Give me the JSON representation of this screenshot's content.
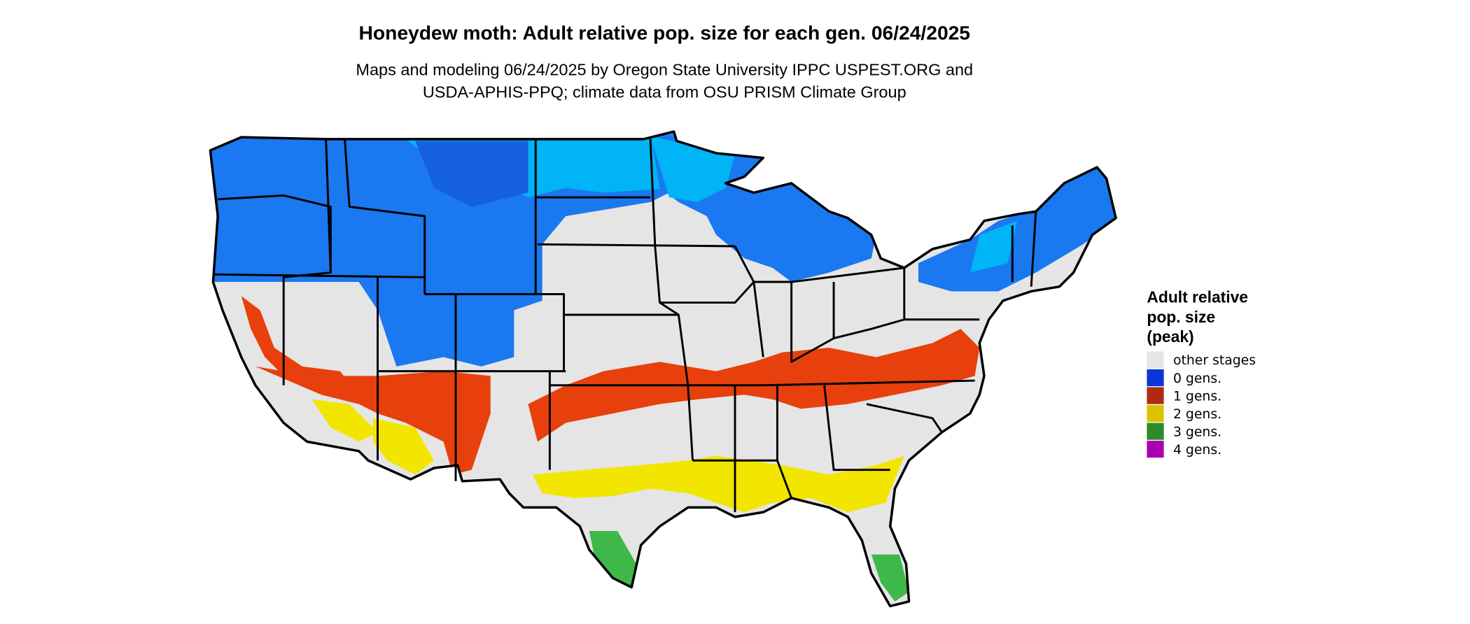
{
  "header": {
    "title": "Honeydew moth: Adult relative pop. size for each gen. 06/24/2025",
    "subtitle": [
      "Maps and modeling 06/24/2025 by Oregon State University IPPC USPEST.ORG and",
      "USDA-APHIS-PPQ; climate data from OSU PRISM Climate Group"
    ]
  },
  "legend": {
    "title": [
      "Adult relative",
      "pop. size",
      "(peak)"
    ],
    "items": [
      {
        "label": "other stages",
        "color": "#e5e5e5"
      },
      {
        "label": "0 gens.",
        "color": "#0a35d8"
      },
      {
        "label": "1 gens.",
        "color": "#b02a12"
      },
      {
        "label": "2 gens.",
        "color": "#dcc300"
      },
      {
        "label": "3 gens.",
        "color": "#2d8a2d"
      },
      {
        "label": "4 gens.",
        "color": "#a800b0"
      }
    ]
  }
}
